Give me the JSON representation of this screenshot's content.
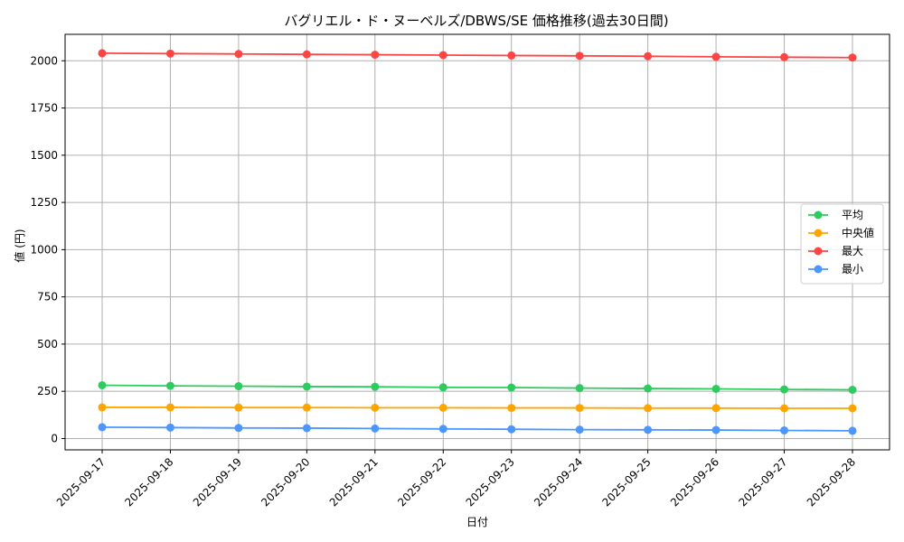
{
  "chart_data": {
    "type": "line",
    "title": "バグリエル・ド・ヌーベルズ/DBWS/SE 価格推移(過去30日間)",
    "xlabel": "日付",
    "ylabel": "値 (円)",
    "categories": [
      "2025-09-17",
      "2025-09-18",
      "2025-09-19",
      "2025-09-20",
      "2025-09-21",
      "2025-09-22",
      "2025-09-23",
      "2025-09-24",
      "2025-09-25",
      "2025-09-26",
      "2025-09-27",
      "2025-09-28"
    ],
    "ylim": [
      -60,
      2140
    ],
    "yticks": [
      0,
      250,
      500,
      750,
      1000,
      1250,
      1500,
      1750,
      2000
    ],
    "grid": true,
    "legend_position": "center-right",
    "series": [
      {
        "name": "平均",
        "color": "#2ecc5f",
        "values": [
          282,
          279,
          277,
          275,
          274,
          271,
          270,
          267,
          265,
          263,
          260,
          258
        ]
      },
      {
        "name": "中央値",
        "color": "#ffa500",
        "values": [
          165,
          165,
          164,
          164,
          163,
          163,
          162,
          162,
          161,
          161,
          160,
          160
        ]
      },
      {
        "name": "最大",
        "color": "#ff4444",
        "values": [
          2040,
          2038,
          2036,
          2034,
          2032,
          2030,
          2028,
          2026,
          2024,
          2021,
          2019,
          2017
        ]
      },
      {
        "name": "最小",
        "color": "#4c96ff",
        "values": [
          60,
          58,
          56,
          55,
          53,
          51,
          49,
          47,
          46,
          45,
          43,
          41
        ]
      }
    ]
  }
}
